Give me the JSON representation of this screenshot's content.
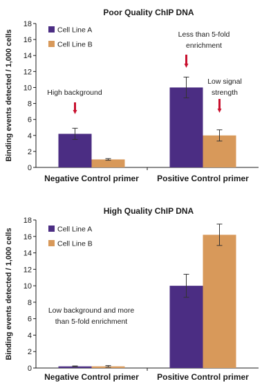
{
  "chart_data": [
    {
      "type": "bar",
      "title": "Poor Quality ChIP DNA",
      "ylabel": "Binding events detected / 1,000 cells",
      "xlabel": "",
      "categories": [
        "Negative Control primer",
        "Positive Control primer"
      ],
      "ylim": [
        0,
        18
      ],
      "yticks": [
        0,
        2,
        4,
        6,
        8,
        10,
        12,
        14,
        16,
        18
      ],
      "series": [
        {
          "name": "Cell Line A",
          "values": [
            4.2,
            10.0
          ],
          "errors": [
            0.7,
            1.3
          ],
          "color": "#4b2d83"
        },
        {
          "name": "Cell Line B",
          "values": [
            1.0,
            4.0
          ],
          "errors": [
            0.1,
            0.7
          ],
          "color": "#d8995a"
        }
      ],
      "legend": "top-left",
      "grid": false,
      "annotations": [
        {
          "lines": [
            "High background"
          ],
          "arrow": true,
          "category": 0,
          "series": 0
        },
        {
          "lines": [
            "Less than 5-fold",
            "enrichment"
          ],
          "arrow": true,
          "category": 1,
          "series": 0
        },
        {
          "lines": [
            "Low signal",
            "strength"
          ],
          "arrow": true,
          "category": 1,
          "series": 1
        }
      ]
    },
    {
      "type": "bar",
      "title": "High Quality ChIP DNA",
      "ylabel": "Binding events detected / 1,000 cells",
      "xlabel": "",
      "categories": [
        "Negative Control primer",
        "Positive Control primer"
      ],
      "ylim": [
        0,
        18
      ],
      "yticks": [
        0,
        2,
        4,
        6,
        8,
        10,
        12,
        14,
        16,
        18
      ],
      "series": [
        {
          "name": "Cell Line A",
          "values": [
            0.2,
            10.0
          ],
          "errors": [
            0.05,
            1.4
          ],
          "color": "#4b2d83"
        },
        {
          "name": "Cell Line B",
          "values": [
            0.2,
            16.2
          ],
          "errors": [
            0.1,
            1.3
          ],
          "color": "#d8995a"
        }
      ],
      "legend": "top-left",
      "grid": false,
      "annotations": [
        {
          "lines": [
            "Low background and more",
            "than 5-fold enrichment"
          ],
          "arrow": false,
          "category": 0,
          "series": 0
        }
      ]
    }
  ],
  "colors": {
    "arrow": "#c8102e",
    "axis": "#1a1a1a",
    "error_bar": "#333333"
  }
}
